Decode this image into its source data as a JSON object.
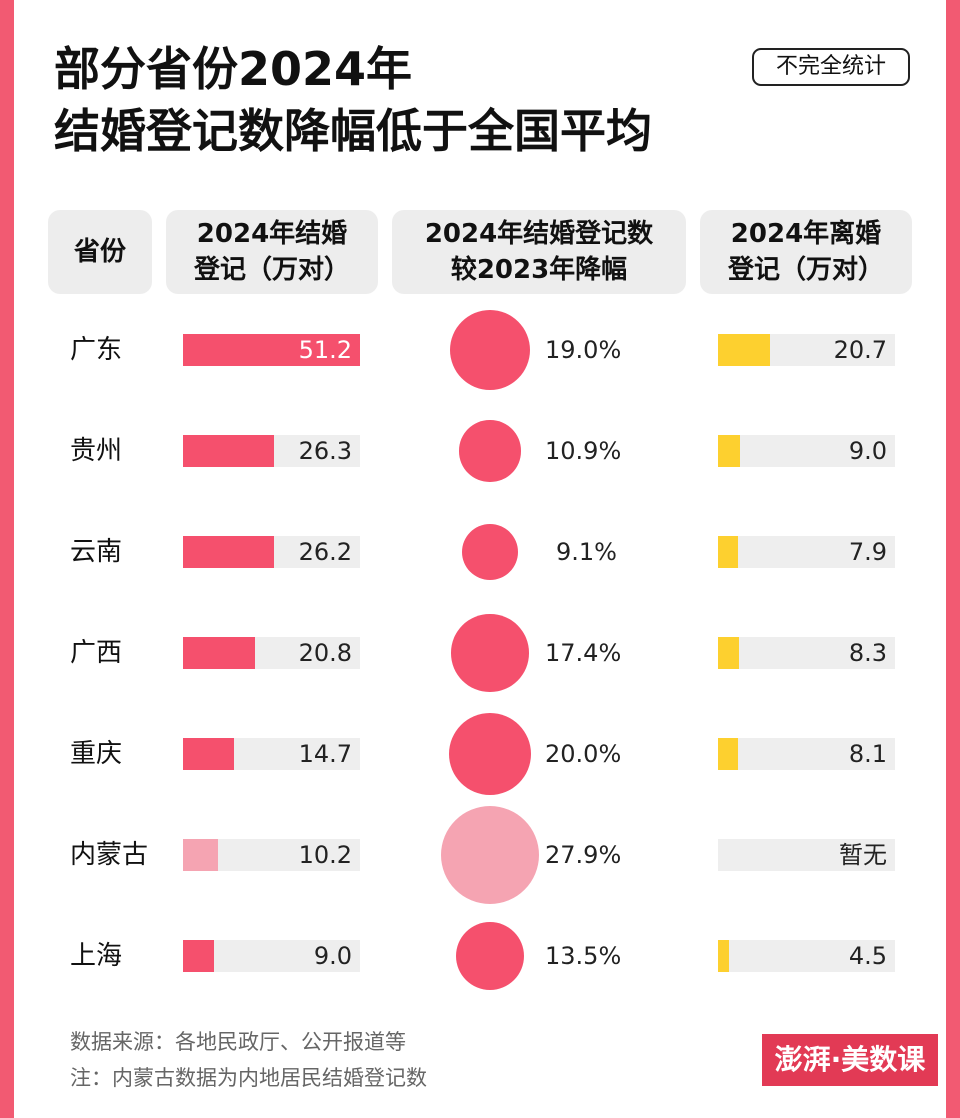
{
  "header": {
    "title_line1": "部分省份2024年",
    "title_line2": "结婚登记数降幅低于全国平均",
    "badge": "不完全统计"
  },
  "columns": {
    "province": "省份",
    "marriage_line1": "2024年结婚",
    "marriage_line2": "登记（万对）",
    "decline_line1": "2024年结婚登记数",
    "decline_line2": "较2023年降幅",
    "divorce_line1": "2024年离婚",
    "divorce_line2": "登记（万对）"
  },
  "colors": {
    "pink": "#f5506d",
    "pink_light": "#f5a4b2",
    "yellow": "#fdd02f",
    "track": "#eeeeee"
  },
  "chart_data": {
    "type": "table",
    "title": "部分省份2024年结婚登记数降幅低于全国平均",
    "columns": [
      "省份",
      "2024年结婚登记（万对）",
      "2024年结婚登记数较2023年降幅",
      "2024年离婚登记（万对）"
    ],
    "marriage_max": 51.2,
    "divorce_max": 71,
    "decline_max": 27.9,
    "rows": [
      {
        "province": "广东",
        "marriage": 51.2,
        "marriage_label": "51.2",
        "decline": 19.0,
        "decline_label": "19.0%",
        "divorce": 20.7,
        "divorce_label": "20.7"
      },
      {
        "province": "贵州",
        "marriage": 26.3,
        "marriage_label": "26.3",
        "decline": 10.9,
        "decline_label": "10.9%",
        "divorce": 9.0,
        "divorce_label": "9.0"
      },
      {
        "province": "云南",
        "marriage": 26.2,
        "marriage_label": "26.2",
        "decline": 9.1,
        "decline_label": "9.1%",
        "divorce": 7.9,
        "divorce_label": "7.9"
      },
      {
        "province": "广西",
        "marriage": 20.8,
        "marriage_label": "20.8",
        "decline": 17.4,
        "decline_label": "17.4%",
        "divorce": 8.3,
        "divorce_label": "8.3"
      },
      {
        "province": "重庆",
        "marriage": 14.7,
        "marriage_label": "14.7",
        "decline": 20.0,
        "decline_label": "20.0%",
        "divorce": 8.1,
        "divorce_label": "8.1"
      },
      {
        "province": "内蒙古",
        "marriage": 10.2,
        "marriage_label": "10.2",
        "decline": 27.9,
        "decline_label": "27.9%",
        "divorce": null,
        "divorce_label": "暂无",
        "highlight": true
      },
      {
        "province": "上海",
        "marriage": 9.0,
        "marriage_label": "9.0",
        "decline": 13.5,
        "decline_label": "13.5%",
        "divorce": 4.5,
        "divorce_label": "4.5"
      }
    ]
  },
  "footer": {
    "source": "数据来源：各地民政厅、公开报道等",
    "note": "注：内蒙古数据为内地居民结婚登记数",
    "logo": "澎湃·美数课"
  }
}
